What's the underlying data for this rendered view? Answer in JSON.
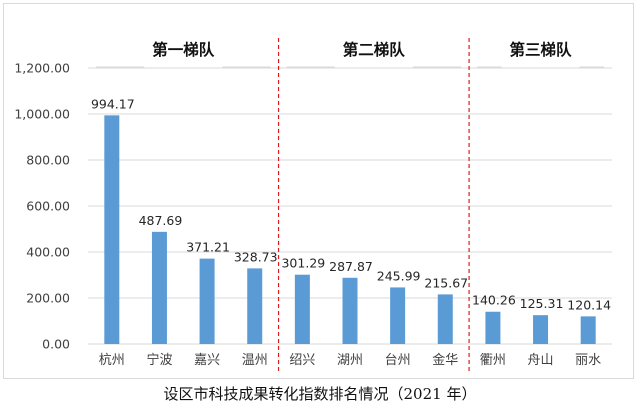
{
  "caption": "设区市科技成果转化指数排名情况（2021 年）",
  "colors": {
    "bar": "#5b9bd5",
    "grid": "#d9d9d9",
    "divider": "#e31a1c",
    "text": "#404040"
  },
  "chart_data": {
    "type": "bar",
    "categories": [
      "杭州",
      "宁波",
      "嘉兴",
      "温州",
      "绍兴",
      "湖州",
      "台州",
      "金华",
      "衢州",
      "舟山",
      "丽水"
    ],
    "values": [
      994.17,
      487.69,
      371.21,
      328.73,
      301.29,
      287.87,
      245.99,
      215.67,
      140.26,
      125.31,
      120.14
    ],
    "value_labels": [
      "994.17",
      "487.69",
      "371.21",
      "328.73",
      "301.29",
      "287.87",
      "245.99",
      "215.67",
      "140.26",
      "125.31",
      "120.14"
    ],
    "ylim": [
      0,
      1200
    ],
    "yticks": [
      "0.00",
      "200.00",
      "400.00",
      "600.00",
      "800.00",
      "1,000.00",
      "1,200.00"
    ],
    "grid": true,
    "groups": [
      {
        "label": "第一梯队",
        "start": 0,
        "end": 3
      },
      {
        "label": "第二梯队",
        "start": 4,
        "end": 7
      },
      {
        "label": "第三梯队",
        "start": 8,
        "end": 10
      }
    ]
  }
}
